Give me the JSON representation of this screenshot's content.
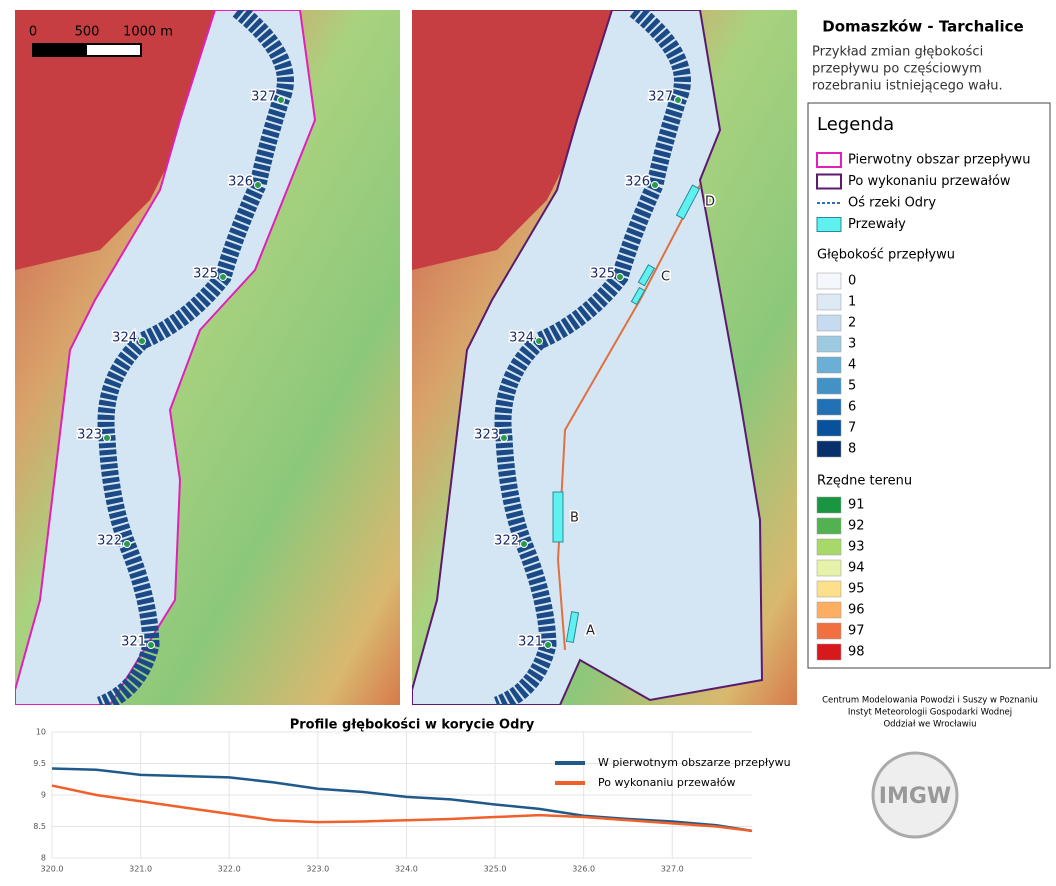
{
  "header": {
    "title": "Domaszków - Tarchalice",
    "description": [
      "Przykład zmian głębokości",
      "przepływu po częściowym",
      "rozebraniu istniejącego wału."
    ]
  },
  "scale_bar": [
    "0",
    "500",
    "1000 m"
  ],
  "maps": {
    "river_km": [
      327,
      326,
      325,
      324,
      323,
      322,
      321
    ],
    "weirs": [
      "A",
      "B",
      "C",
      "D"
    ]
  },
  "legend": {
    "title": "Legenda",
    "items": [
      {
        "label": "Pierwotny obszar przepływu",
        "symbol": "outline",
        "color": "#e020b8"
      },
      {
        "label": "Po wykonaniu przewałów",
        "symbol": "outline",
        "color": "#5a1a6e"
      },
      {
        "label": "Oś rzeki Odry",
        "symbol": "dashed",
        "color": "#2a6fc0"
      },
      {
        "label": "Przewały",
        "symbol": "fill",
        "color": "#5ff0f0"
      }
    ],
    "depth": {
      "title": "Głębokość przepływu",
      "classes": [
        {
          "value": 0,
          "color": "#f4f8fc"
        },
        {
          "value": 1,
          "color": "#dde9f5"
        },
        {
          "value": 2,
          "color": "#c6dbef"
        },
        {
          "value": 3,
          "color": "#9ecae1"
        },
        {
          "value": 4,
          "color": "#6baed6"
        },
        {
          "value": 5,
          "color": "#4292c6"
        },
        {
          "value": 6,
          "color": "#2171b5"
        },
        {
          "value": 7,
          "color": "#08519c"
        },
        {
          "value": 8,
          "color": "#08306b"
        }
      ]
    },
    "terrain": {
      "title": "Rzędne terenu",
      "classes": [
        {
          "value": 91,
          "color": "#1a9641"
        },
        {
          "value": 92,
          "color": "#52b151"
        },
        {
          "value": 93,
          "color": "#a6d96a"
        },
        {
          "value": 94,
          "color": "#e6f2aa"
        },
        {
          "value": 95,
          "color": "#fee08b"
        },
        {
          "value": 96,
          "color": "#fdae61"
        },
        {
          "value": 97,
          "color": "#f07040"
        },
        {
          "value": 98,
          "color": "#d7191c"
        }
      ]
    }
  },
  "credits": [
    "Centrum Modelowania Powodzi i Suszy w Poznaniu",
    "Instyt Meteorologii  Gospodarki Wodnej",
    "Oddział we Wrocławiu"
  ],
  "logo": "IMGW",
  "chart_data": {
    "type": "line",
    "title": "Profile głębokości w korycie Odry",
    "x": [
      320,
      320.5,
      321,
      321.5,
      322,
      322.5,
      323,
      323.5,
      324,
      324.5,
      325,
      325.5,
      326,
      326.5,
      327,
      327.5,
      327.9
    ],
    "series": [
      {
        "name": "W pierwotnym obszarze przepływu",
        "color": "#1f5a8a",
        "values": [
          9.42,
          9.4,
          9.32,
          9.3,
          9.28,
          9.2,
          9.1,
          9.05,
          8.97,
          8.93,
          8.85,
          8.78,
          8.67,
          8.62,
          8.58,
          8.52,
          8.43
        ]
      },
      {
        "name": "Po wykonaniu przewałów",
        "color": "#f0602a",
        "values": [
          9.15,
          9.0,
          8.9,
          8.8,
          8.7,
          8.6,
          8.57,
          8.58,
          8.6,
          8.62,
          8.65,
          8.68,
          8.65,
          8.6,
          8.55,
          8.5,
          8.43
        ]
      }
    ],
    "xlim": [
      320,
      327.9
    ],
    "ylim": [
      8,
      10
    ],
    "xticks": [
      {
        "value": 320,
        "label": "320.0"
      },
      {
        "value": 321,
        "label": "321.0"
      },
      {
        "value": 322,
        "label": "322.0"
      },
      {
        "value": 323,
        "label": "323.0"
      },
      {
        "value": 324,
        "label": "324.0"
      },
      {
        "value": 325,
        "label": "325.0"
      },
      {
        "value": 326,
        "label": "326.0"
      },
      {
        "value": 327,
        "label": "327.0"
      }
    ],
    "yticks": [
      8,
      8.5,
      9,
      9.5,
      10
    ],
    "grid": true,
    "legend": "upper right"
  }
}
